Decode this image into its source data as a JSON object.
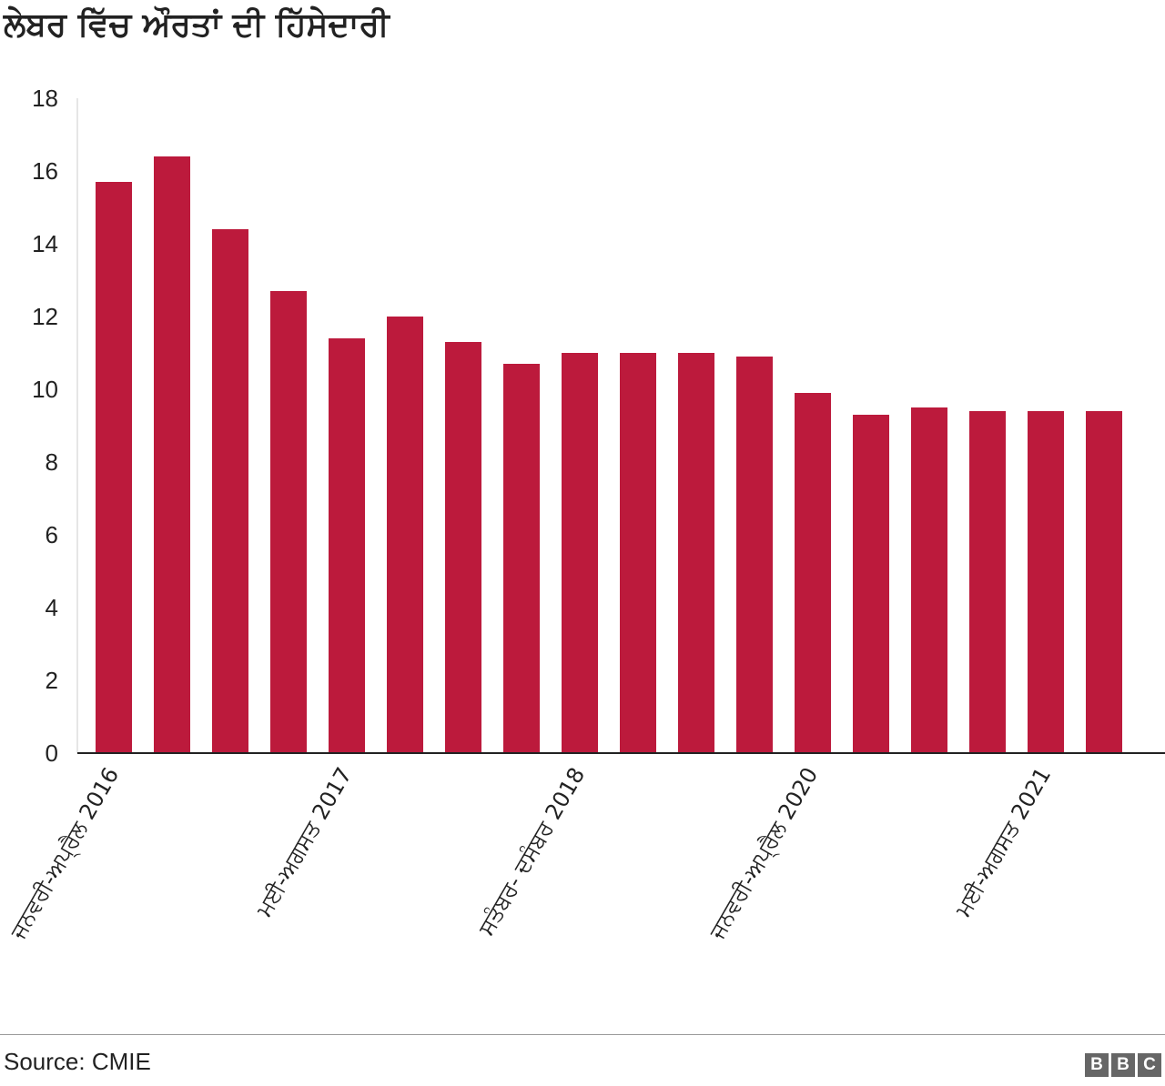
{
  "title": "ਲੇਬਰ ਵਿੱਚ ਔਰਤਾਂ ਦੀ ਹਿੱਸੇਦਾਰੀ",
  "source": "Source: CMIE",
  "logo": [
    "B",
    "B",
    "C"
  ],
  "colors": {
    "bar": "#bc1a3c",
    "axis": "#222222",
    "text": "#222222"
  },
  "chart_data": {
    "type": "bar",
    "title": "ਲੇਬਰ ਵਿੱਚ ਔਰਤਾਂ ਦੀ ਹਿੱਸੇਦਾਰੀ",
    "xlabel": "",
    "ylabel": "",
    "ylim": [
      0,
      18
    ],
    "yticks": [
      0,
      2,
      4,
      6,
      8,
      10,
      12,
      14,
      16,
      18
    ],
    "grid": false,
    "legend": "none",
    "values": [
      15.7,
      16.4,
      14.4,
      12.7,
      11.4,
      12.0,
      11.3,
      10.7,
      11.0,
      11.0,
      11.0,
      10.9,
      9.9,
      9.3,
      9.5,
      9.4,
      9.4,
      9.4
    ],
    "category_labels": [
      {
        "index": 0,
        "label": "ਜਨਵਰੀ-ਅਪ੍ਰੈਲ 2016"
      },
      {
        "index": 4,
        "label": "ਮਈ-ਅਗਸਤ 2017"
      },
      {
        "index": 8,
        "label": "ਸਤੰਬਰ- ਦਸੰਬਰ 2018"
      },
      {
        "index": 12,
        "label": "ਜਨਵਰੀ-ਅਪ੍ਰੈਲ 2020"
      },
      {
        "index": 16,
        "label": "ਮਈ-ਅਗਸਤ 2021"
      }
    ]
  }
}
